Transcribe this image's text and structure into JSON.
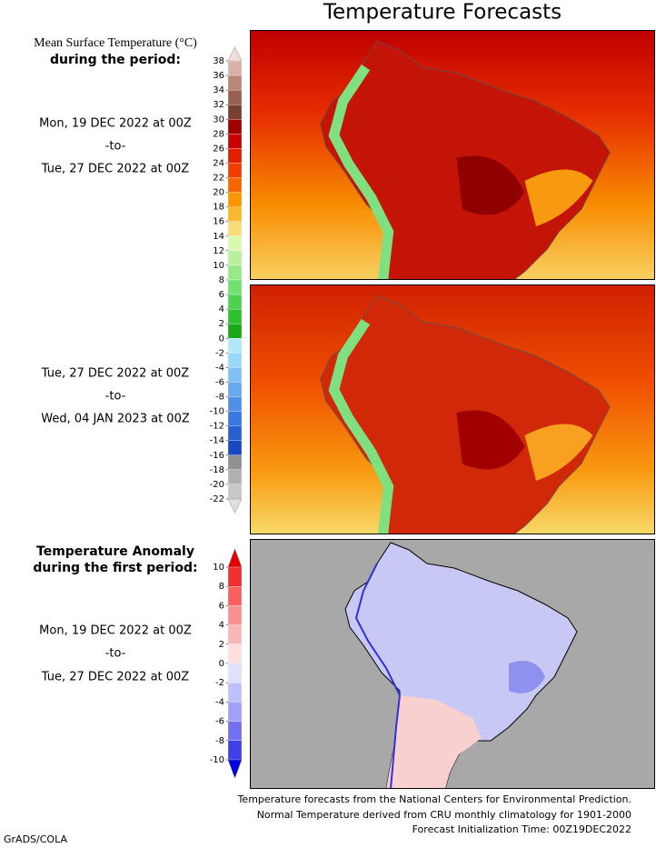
{
  "title": "Temperature Forecasts",
  "temperature_legend": {
    "title_lines": [
      "Mean Surface Temperature (°C)",
      "during the period:"
    ],
    "ticks": [
      38,
      36,
      34,
      32,
      30,
      28,
      26,
      24,
      22,
      20,
      18,
      16,
      14,
      12,
      10,
      8,
      6,
      4,
      2,
      0,
      -2,
      -4,
      -6,
      -8,
      -10,
      -12,
      -14,
      -16,
      -18,
      -20,
      -22
    ],
    "colors": [
      "#f0dcd8",
      "#d8b0a8",
      "#b88878",
      "#986050",
      "#784030",
      "#a00000",
      "#c80000",
      "#e01e00",
      "#f03c00",
      "#f86400",
      "#fa9600",
      "#f8b830",
      "#f8dc78",
      "#d8f8b0",
      "#b8f0a0",
      "#98e888",
      "#70e070",
      "#50d050",
      "#30c030",
      "#18a818",
      "#b0e8f8",
      "#98d8f8",
      "#80c0f8",
      "#68a8f0",
      "#5090e8",
      "#3878e0",
      "#2860d0",
      "#1848c0",
      "#909090",
      "#b0b0b0",
      "#c8c8c8",
      "#e0e0e0"
    ]
  },
  "period_1": [
    "Mon, 19 DEC 2022 at 00Z",
    "-to-",
    "Tue, 27 DEC 2022 at 00Z"
  ],
  "period_2": [
    "Tue, 27 DEC 2022 at 00Z",
    "-to-",
    "Wed, 04 JAN 2023 at 00Z"
  ],
  "anomaly_legend": {
    "title_lines": [
      "Temperature Anomaly",
      "during the first period:"
    ],
    "ticks": [
      10,
      8,
      6,
      4,
      2,
      0,
      -2,
      -4,
      -6,
      -8,
      -10
    ],
    "colors": [
      "#e00000",
      "#f03030",
      "#f86060",
      "#f89090",
      "#f8b8b8",
      "#fce0e0",
      "#e0e0fc",
      "#c0c0f8",
      "#a0a0f8",
      "#7070f0",
      "#4040e8",
      "#0000e0"
    ]
  },
  "period_3": [
    "Mon, 19 DEC 2022 at 00Z",
    "-to-",
    "Tue, 27 DEC 2022 at 00Z"
  ],
  "footer": [
    "Temperature forecasts from the National Centers for Environmental Prediction.",
    "Normal Temperature derived from CRU monthly climatology for 1901-2000",
    "Forecast Initialization Time: 00Z19DEC2022"
  ],
  "credit": "GrADS/COLA"
}
